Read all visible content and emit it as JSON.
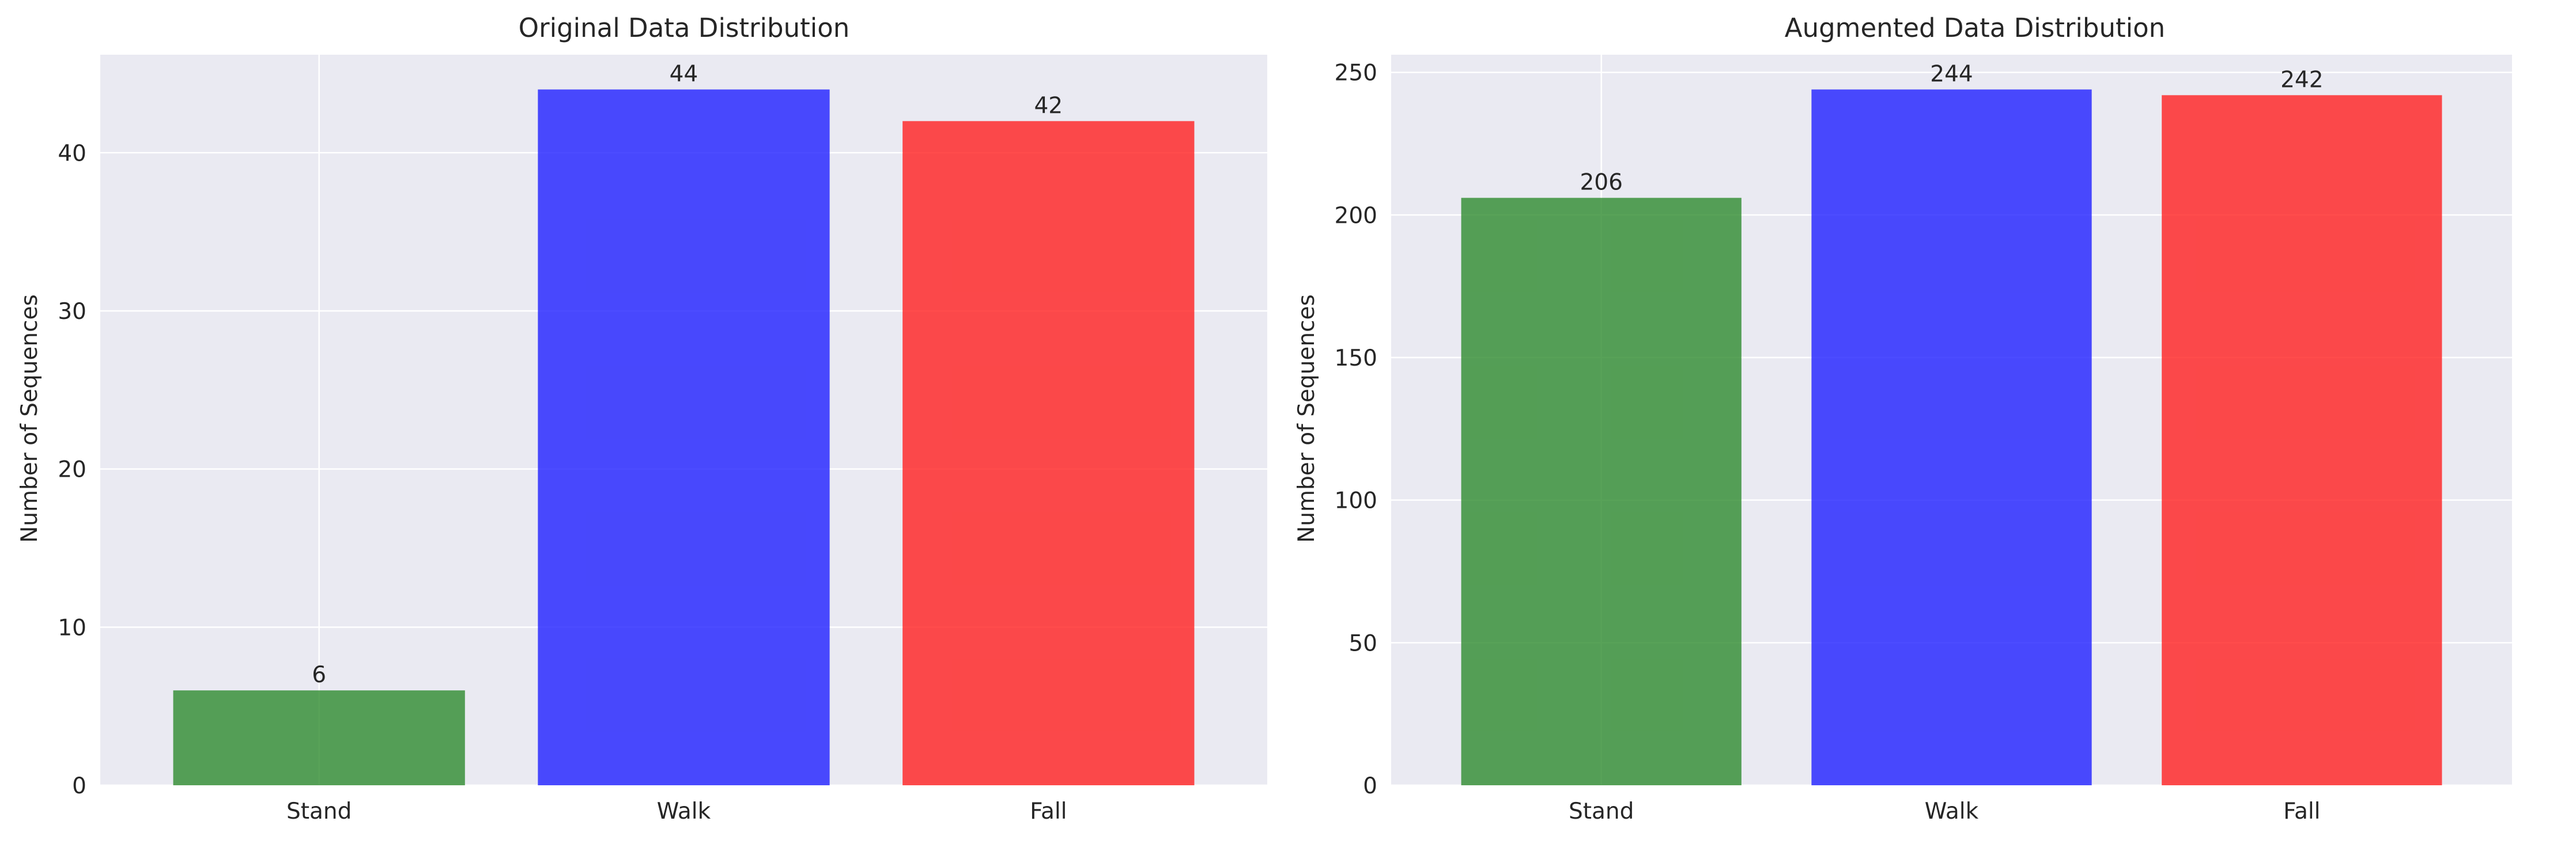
{
  "chart_data": [
    {
      "type": "bar",
      "title": "Original Data Distribution",
      "xlabel": "",
      "ylabel": "Number of Sequences",
      "categories": [
        "Stand",
        "Walk",
        "Fall"
      ],
      "values": [
        6,
        44,
        42
      ],
      "value_labels": [
        "6",
        "44",
        "42"
      ],
      "colors": [
        "#2e8b2e",
        "#1f1fff",
        "#ff1f1f"
      ],
      "ylim": [
        0,
        46.2
      ],
      "yticks": [
        0,
        10,
        20,
        30,
        40
      ],
      "grid": true,
      "legend": "none"
    },
    {
      "type": "bar",
      "title": "Augmented Data Distribution",
      "xlabel": "",
      "ylabel": "Number of Sequences",
      "categories": [
        "Stand",
        "Walk",
        "Fall"
      ],
      "values": [
        206,
        244,
        242
      ],
      "value_labels": [
        "206",
        "244",
        "242"
      ],
      "colors": [
        "#2e8b2e",
        "#1f1fff",
        "#ff1f1f"
      ],
      "ylim": [
        0,
        256.2
      ],
      "yticks": [
        0,
        50,
        100,
        150,
        200,
        250
      ],
      "grid": true,
      "legend": "none"
    }
  ]
}
